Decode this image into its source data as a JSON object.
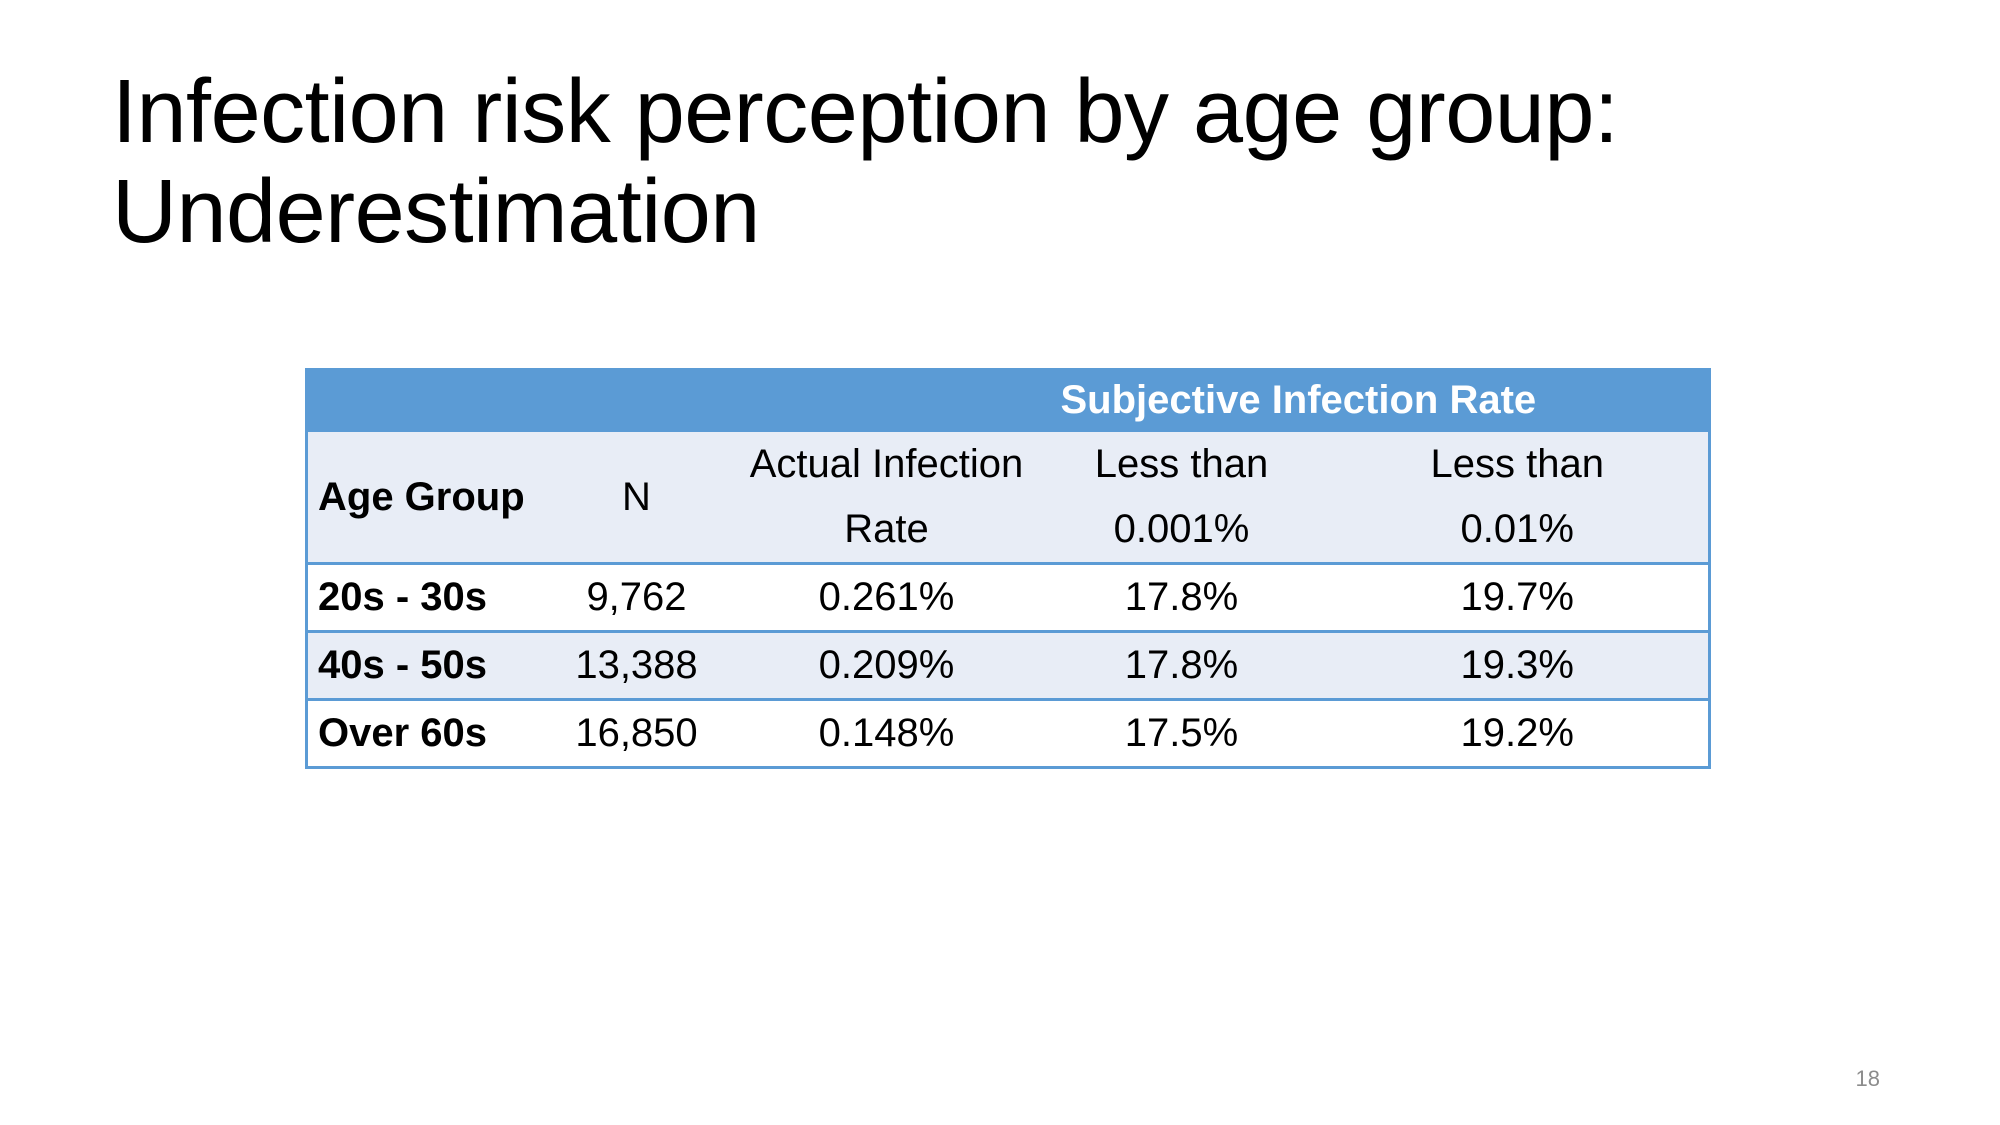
{
  "slide": {
    "title_line1": "Infection risk perception by age group:",
    "title_line2": "Underestimation",
    "page_number": "18"
  },
  "table": {
    "group_header": "Subjective Infection Rate",
    "columns": {
      "age_group": "Age Group",
      "n": "N",
      "actual_line1": "Actual Infection",
      "actual_line2": "Rate",
      "less001_line1": "Less than",
      "less001_line2": "0.001%",
      "less01_line1": "Less than",
      "less01_line2": "0.01%"
    },
    "rows": [
      {
        "age_group": "20s - 30s",
        "n": "9,762",
        "actual": "0.261%",
        "less_0001": "17.8%",
        "less_001": "19.7%"
      },
      {
        "age_group": "40s - 50s",
        "n": "13,388",
        "actual": "0.209%",
        "less_0001": "17.8%",
        "less_001": "19.3%"
      },
      {
        "age_group": "Over 60s",
        "n": "16,850",
        "actual": "0.148%",
        "less_0001": "17.5%",
        "less_001": "19.2%"
      }
    ],
    "colors": {
      "header_blue": "#5b9bd5",
      "row_shade": "#e8edf6"
    }
  }
}
